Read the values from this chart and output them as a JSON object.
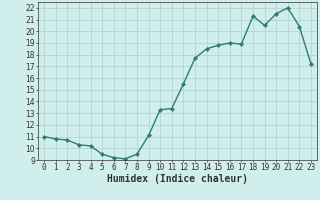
{
  "x": [
    0,
    1,
    2,
    3,
    4,
    5,
    6,
    7,
    8,
    9,
    10,
    11,
    12,
    13,
    14,
    15,
    16,
    17,
    18,
    19,
    20,
    21,
    22,
    23
  ],
  "y": [
    11,
    10.8,
    10.7,
    10.3,
    10.2,
    9.5,
    9.2,
    9.1,
    9.5,
    11.1,
    13.3,
    13.4,
    15.5,
    17.7,
    18.5,
    18.8,
    19.0,
    18.9,
    21.3,
    20.5,
    21.5,
    22.0,
    20.4,
    17.2
  ],
  "line_color": "#2e7d6e",
  "marker": "D",
  "marker_size": 2.2,
  "line_width": 1.0,
  "bg_color": "#d0eeec",
  "grid_color": "#b8d8d5",
  "xlabel": "Humidex (Indice chaleur)",
  "xlabel_fontsize": 7,
  "ylim": [
    9,
    22.5
  ],
  "xlim": [
    -0.5,
    23.5
  ],
  "yticks": [
    9,
    10,
    11,
    12,
    13,
    14,
    15,
    16,
    17,
    18,
    19,
    20,
    21,
    22
  ],
  "xticks": [
    0,
    1,
    2,
    3,
    4,
    5,
    6,
    7,
    8,
    9,
    10,
    11,
    12,
    13,
    14,
    15,
    16,
    17,
    18,
    19,
    20,
    21,
    22,
    23
  ],
  "tick_fontsize": 5.5,
  "axis_color": "#333333"
}
